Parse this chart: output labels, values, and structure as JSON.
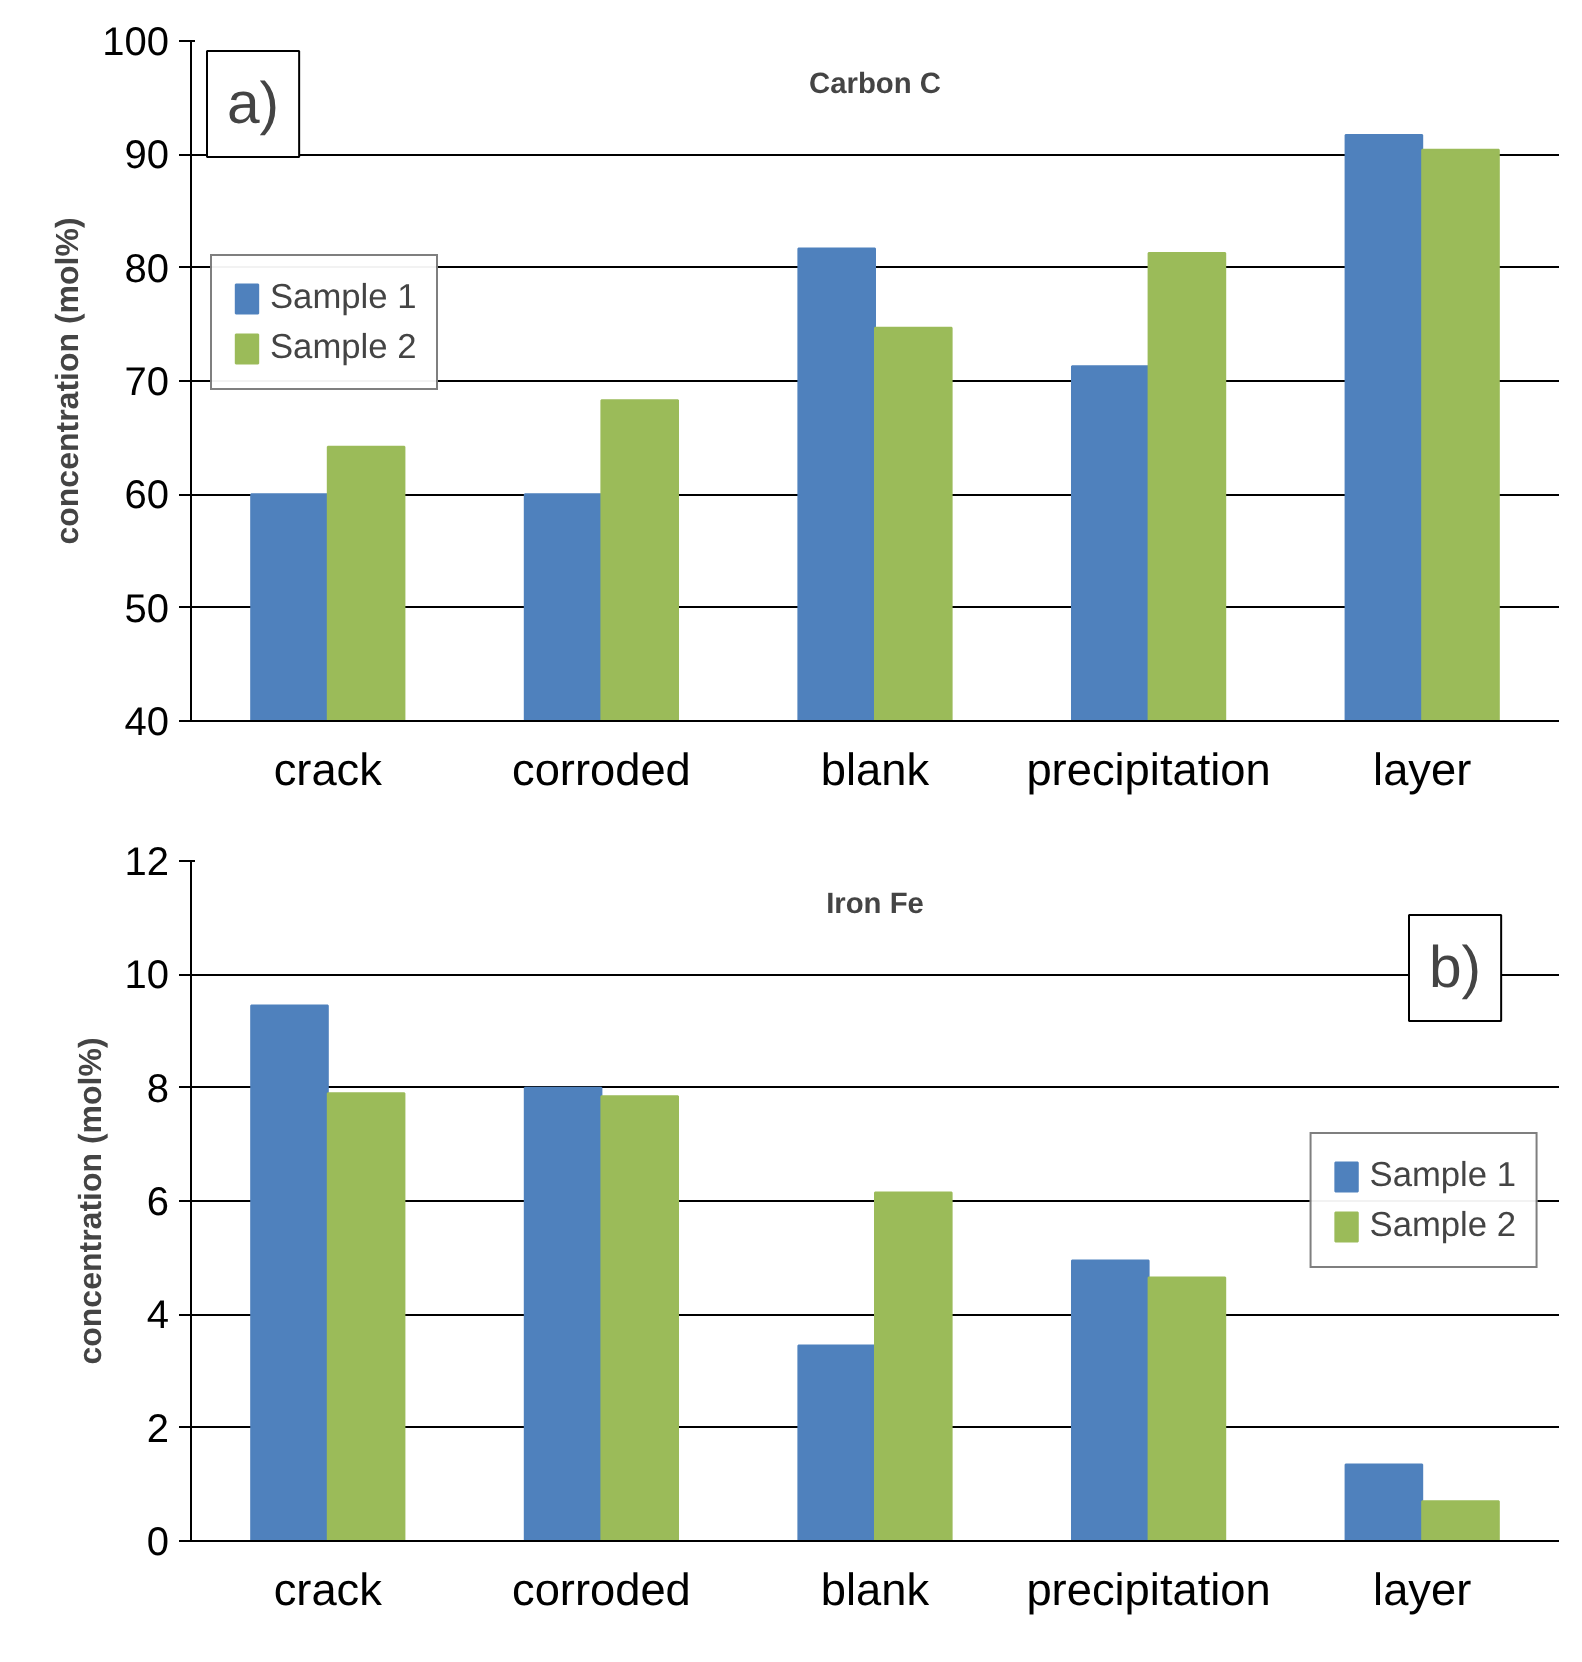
{
  "chart_data": [
    {
      "type": "bar",
      "title": "Carbon C",
      "ylabel": "concentration (mol%)",
      "categories": [
        "crack",
        "corroded",
        "blank",
        "precipitation",
        "layer"
      ],
      "series": [
        {
          "name": "Sample 1",
          "color": "#4f81bd",
          "values": [
            60,
            60,
            81.7,
            71.3,
            91.7
          ]
        },
        {
          "name": "Sample 2",
          "color": "#9bbb59",
          "values": [
            64.2,
            68.3,
            74.7,
            81.3,
            90.4
          ]
        }
      ],
      "ylim": [
        40,
        100
      ],
      "yticks": [
        40,
        50,
        60,
        70,
        80,
        90,
        100
      ],
      "grid": "y",
      "legend": "top left",
      "annotations": [
        "a)"
      ]
    },
    {
      "type": "bar",
      "title": "Iron Fe",
      "ylabel": "concentration (mol%)",
      "categories": [
        "crack",
        "corroded",
        "blank",
        "precipitation",
        "layer"
      ],
      "series": [
        {
          "name": "Sample 1",
          "color": "#4f81bd",
          "values": [
            9.45,
            8.0,
            3.45,
            4.95,
            1.35
          ]
        },
        {
          "name": "Sample 2",
          "color": "#9bbb59",
          "values": [
            7.9,
            7.85,
            6.15,
            4.65,
            0.7
          ]
        }
      ],
      "ylim": [
        0,
        12
      ],
      "yticks": [
        0,
        2,
        4,
        6,
        8,
        10,
        12
      ],
      "grid": "y",
      "legend": "right",
      "annotations": [
        "b)"
      ]
    }
  ]
}
